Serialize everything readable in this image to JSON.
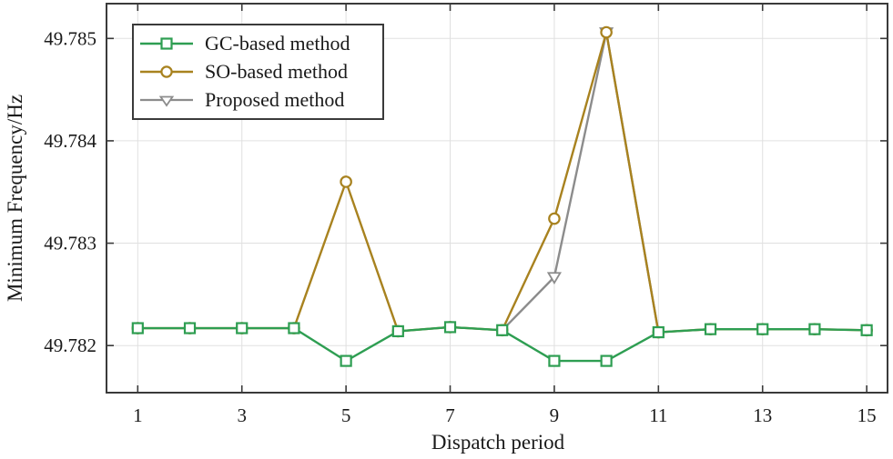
{
  "figure": {
    "background": "#ffffff",
    "axis_color": "#3a3a3a",
    "grid_color": "#e0e0e0",
    "text_color": "#1a1a1a"
  },
  "chart_data": {
    "type": "line",
    "title": "",
    "xlabel": "Dispatch period",
    "ylabel": "Minimum Frequency/Hz",
    "grid": true,
    "legend_position": "top-left-inside",
    "xlim": [
      0.4,
      15.4
    ],
    "ylim": [
      49.78154,
      49.78534
    ],
    "x_ticks": [
      1,
      3,
      5,
      7,
      9,
      11,
      13,
      15
    ],
    "x_tick_labels": [
      "1",
      "3",
      "5",
      "7",
      "9",
      "11",
      "13",
      "15"
    ],
    "y_ticks": [
      49.782,
      49.783,
      49.784,
      49.785
    ],
    "y_tick_labels": [
      "49.782",
      "49.783",
      "49.784",
      "49.785"
    ],
    "series": [
      {
        "name": "GC-based method",
        "color": "#2e9e52",
        "marker": "square",
        "x": [
          1,
          2,
          3,
          4,
          5,
          6,
          7,
          8,
          9,
          10,
          11,
          12,
          13,
          14,
          15
        ],
        "y": [
          49.78217,
          49.78217,
          49.78217,
          49.78217,
          49.78185,
          49.78214,
          49.78218,
          49.78215,
          49.78185,
          49.78185,
          49.78213,
          49.78216,
          49.78216,
          49.78216,
          49.78215
        ]
      },
      {
        "name": "SO-based method",
        "color": "#a8821f",
        "marker": "circle",
        "x": [
          1,
          2,
          3,
          4,
          5,
          6,
          7,
          8,
          9,
          10,
          11,
          12,
          13,
          14,
          15
        ],
        "y": [
          49.78217,
          49.78217,
          49.78217,
          49.78217,
          49.7836,
          49.78214,
          49.78218,
          49.78215,
          49.78324,
          49.78506,
          49.78213,
          49.78216,
          49.78216,
          49.78216,
          49.78215
        ]
      },
      {
        "name": "Proposed method",
        "color": "#8c8c8c",
        "marker": "triangle-down",
        "x": [
          8,
          9,
          10,
          11
        ],
        "y": [
          49.78215,
          49.78267,
          49.78506,
          49.78213
        ],
        "markers_at": [
          9,
          10
        ]
      }
    ]
  }
}
